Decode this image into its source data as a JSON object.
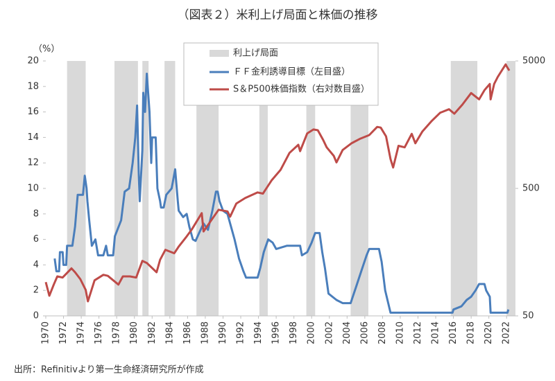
{
  "chart_data": {
    "type": "line",
    "title": "（図表２）米利上げ局面と株価の推移",
    "y_unit": "（%）",
    "source": "出所：Refinitivより第一生命経済研究所が作成",
    "xlim": [
      1970,
      2023
    ],
    "xticks": [
      1970,
      1972,
      1974,
      1976,
      1978,
      1980,
      1982,
      1984,
      1986,
      1988,
      1990,
      1992,
      1994,
      1996,
      1998,
      2000,
      2002,
      2004,
      2006,
      2008,
      2010,
      2012,
      2014,
      2016,
      2018,
      2020,
      2022
    ],
    "ylim": [
      0,
      20
    ],
    "yticks": [
      0,
      2,
      4,
      6,
      8,
      10,
      12,
      14,
      16,
      18,
      20
    ],
    "y2lim": [
      50,
      5000
    ],
    "y2ticks": [
      50,
      500,
      5000
    ],
    "y2log": true,
    "shaded": {
      "name": "利上げ局面",
      "color": "#d9d9d9",
      "periods": [
        [
          1972.4,
          1974.5
        ],
        [
          1977.75,
          1980.4
        ],
        [
          1980.9,
          1981.6
        ],
        [
          1983.4,
          1984.6
        ],
        [
          1987.0,
          1989.5
        ],
        [
          1994.1,
          1995.05
        ],
        [
          1999.4,
          2000.4
        ],
        [
          2004.4,
          2006.4
        ],
        [
          2015.7,
          2018.7
        ],
        [
          2022.0,
          2023.0
        ]
      ]
    },
    "series": [
      {
        "name": "ＦＦ金利誘導目標（左目盛）",
        "color": "#4a7ebb",
        "axis": "y",
        "x": [
          1971.0,
          1971.2,
          1971.5,
          1971.6,
          1971.9,
          1972.0,
          1972.3,
          1972.4,
          1973.0,
          1973.3,
          1973.6,
          1974.2,
          1974.4,
          1974.6,
          1974.7,
          1974.9,
          1975.2,
          1975.6,
          1975.9,
          1976.5,
          1976.8,
          1977.0,
          1977.6,
          1977.8,
          1978.5,
          1978.9,
          1979.4,
          1979.8,
          1980.1,
          1980.3,
          1980.5,
          1980.6,
          1980.9,
          1981.0,
          1981.2,
          1981.4,
          1981.5,
          1981.7,
          1981.9,
          1982.0,
          1982.4,
          1982.6,
          1982.9,
          1983.0,
          1983.3,
          1983.6,
          1984.2,
          1984.6,
          1984.9,
          1985.0,
          1985.5,
          1985.9,
          1986.2,
          1986.6,
          1986.9,
          1987.3,
          1987.8,
          1988.3,
          1988.8,
          1989.2,
          1989.4,
          1989.6,
          1990.0,
          1990.5,
          1990.9,
          1991.3,
          1991.8,
          1992.3,
          1992.6,
          1993.9,
          1994.2,
          1994.6,
          1995.1,
          1995.6,
          1996.0,
          1997.2,
          1998.7,
          1998.9,
          1999.5,
          2000.0,
          2000.4,
          2000.9,
          2001.2,
          2001.5,
          2001.9,
          2002.8,
          2003.5,
          2004.4,
          2005.0,
          2005.6,
          2006.2,
          2006.5,
          2007.6,
          2007.9,
          2008.3,
          2008.9,
          2015.9,
          2016.0,
          2016.9,
          2017.5,
          2018.0,
          2018.5,
          2018.9,
          2019.5,
          2019.7,
          2020.1,
          2020.2,
          2022.1,
          2022.2
        ],
        "values": [
          4.5,
          3.5,
          3.5,
          5,
          5,
          4,
          4,
          5.5,
          5.5,
          7,
          9.5,
          9.5,
          11,
          10,
          9,
          7.5,
          5.5,
          6,
          4.75,
          4.75,
          5.5,
          4.75,
          4.75,
          6.25,
          7.5,
          9.75,
          10,
          12,
          14,
          16.5,
          11,
          9,
          13,
          17.5,
          16,
          19,
          18,
          16,
          12,
          14,
          14,
          10,
          9,
          8.5,
          8.5,
          9.5,
          10,
          11.5,
          9,
          8.25,
          7.75,
          8,
          7,
          6,
          5.88,
          6.5,
          7.25,
          6.75,
          8.25,
          9.75,
          9.75,
          9,
          8.25,
          8,
          7,
          6,
          4.5,
          3.5,
          3,
          3,
          3.75,
          5,
          6,
          5.75,
          5.25,
          5.5,
          5.5,
          4.75,
          5,
          5.75,
          6.5,
          6.5,
          5,
          3.75,
          1.75,
          1.25,
          1,
          1,
          2.25,
          3.5,
          4.75,
          5.25,
          5.25,
          4.25,
          2,
          0.25,
          0.25,
          0.5,
          0.75,
          1.25,
          1.5,
          2,
          2.5,
          2.5,
          2,
          1.5,
          0.25,
          0.25,
          0.5
        ]
      },
      {
        "name": "S＆P500株価指数（右対数目盛）",
        "color": "#be4b48",
        "axis": "y2",
        "x": [
          1970.0,
          1970.4,
          1970.9,
          1971.3,
          1971.9,
          1972.9,
          1973.3,
          1973.9,
          1974.5,
          1974.75,
          1975.5,
          1976.5,
          1977.0,
          1978.2,
          1978.7,
          1979.5,
          1980.2,
          1980.9,
          1981.4,
          1982.5,
          1982.9,
          1983.5,
          1984.5,
          1985.0,
          1985.9,
          1986.5,
          1987.6,
          1987.8,
          1988.5,
          1989.5,
          1990.5,
          1990.8,
          1991.5,
          1992.5,
          1993.9,
          1994.5,
          1995.5,
          1996.5,
          1997.5,
          1998.5,
          1998.7,
          1999.5,
          2000.2,
          2000.7,
          2001.3,
          2001.7,
          2002.5,
          2002.8,
          2003.5,
          2004.5,
          2005.5,
          2006.5,
          2007.4,
          2007.8,
          2008.4,
          2008.9,
          2009.2,
          2009.8,
          2010.5,
          2011.3,
          2011.7,
          2012.5,
          2013.5,
          2014.5,
          2015.5,
          2016.1,
          2017.0,
          2018.0,
          2018.9,
          2019.5,
          2020.1,
          2020.2,
          2020.6,
          2021.0,
          2021.9,
          2022.0,
          2022.3
        ],
        "values": [
          92,
          72,
          88,
          102,
          100,
          118,
          110,
          97,
          80,
          65,
          95,
          105,
          103,
          88,
          102,
          102,
          100,
          135,
          130,
          110,
          138,
          165,
          155,
          175,
          210,
          240,
          320,
          230,
          270,
          340,
          330,
          300,
          380,
          420,
          465,
          455,
          580,
          700,
          950,
          1100,
          980,
          1350,
          1450,
          1430,
          1200,
          1050,
          900,
          800,
          1000,
          1130,
          1230,
          1310,
          1520,
          1500,
          1280,
          850,
          730,
          1080,
          1050,
          1340,
          1130,
          1400,
          1680,
          1960,
          2090,
          1930,
          2270,
          2800,
          2500,
          2950,
          3300,
          2500,
          3300,
          3750,
          4700,
          4550,
          4200
        ]
      }
    ]
  }
}
